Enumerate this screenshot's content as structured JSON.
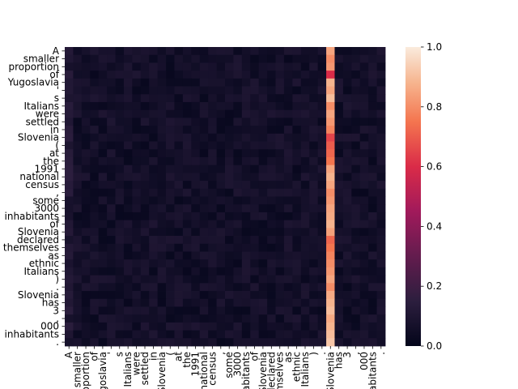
{
  "chart_data": {
    "type": "heatmap",
    "title": "",
    "xlabel": "",
    "ylabel": "",
    "rows": [
      "A",
      "smaller",
      "proportion",
      "of",
      "Yugoslavia",
      "'",
      "s",
      "Italians",
      "were",
      "settled",
      "in",
      "Slovenia",
      "(",
      "at",
      "the",
      "1991",
      "national",
      "census",
      ",",
      "some",
      "3000",
      "inhabitants",
      "of",
      "Slovenia",
      "declared",
      "themselves",
      "as",
      "ethnic",
      "Italians",
      ")",
      ".",
      "Slovenia",
      "has",
      "3",
      ",",
      "000",
      "inhabitants",
      "."
    ],
    "columns": [
      "A",
      "smaller",
      "proportion",
      "of",
      "Yugoslavia",
      "'",
      "s",
      "Italians",
      "were",
      "settled",
      "in",
      "Slovenia",
      "(",
      "at",
      "the",
      "1991",
      "national",
      "census",
      ",",
      "some",
      "3000",
      "inhabitants",
      "of",
      "Slovenia",
      "declared",
      "themselves",
      "as",
      "ethnic",
      "Italians",
      ")",
      ".",
      "Slovenia",
      "has",
      "3",
      ",",
      "000",
      "inhabitants",
      "."
    ],
    "highlight_column": "Slovenia",
    "highlight_column_index": 31,
    "highlight_values": [
      0.85,
      0.8,
      0.82,
      0.6,
      0.88,
      0.85,
      0.9,
      0.8,
      0.85,
      0.82,
      0.78,
      0.65,
      0.7,
      0.72,
      0.75,
      0.85,
      0.88,
      0.85,
      0.8,
      0.82,
      0.85,
      0.86,
      0.88,
      0.84,
      0.72,
      0.75,
      0.78,
      0.8,
      0.82,
      0.85,
      0.8,
      0.86,
      0.88,
      0.9,
      0.86,
      0.88,
      0.9,
      0.92
    ],
    "background_value": 0.02,
    "colorbar": {
      "min": 0.0,
      "max": 1.0,
      "ticks": [
        "0.0",
        "0.2",
        "0.4",
        "0.6",
        "0.8",
        "1.0"
      ]
    },
    "colormap": "rocket"
  }
}
